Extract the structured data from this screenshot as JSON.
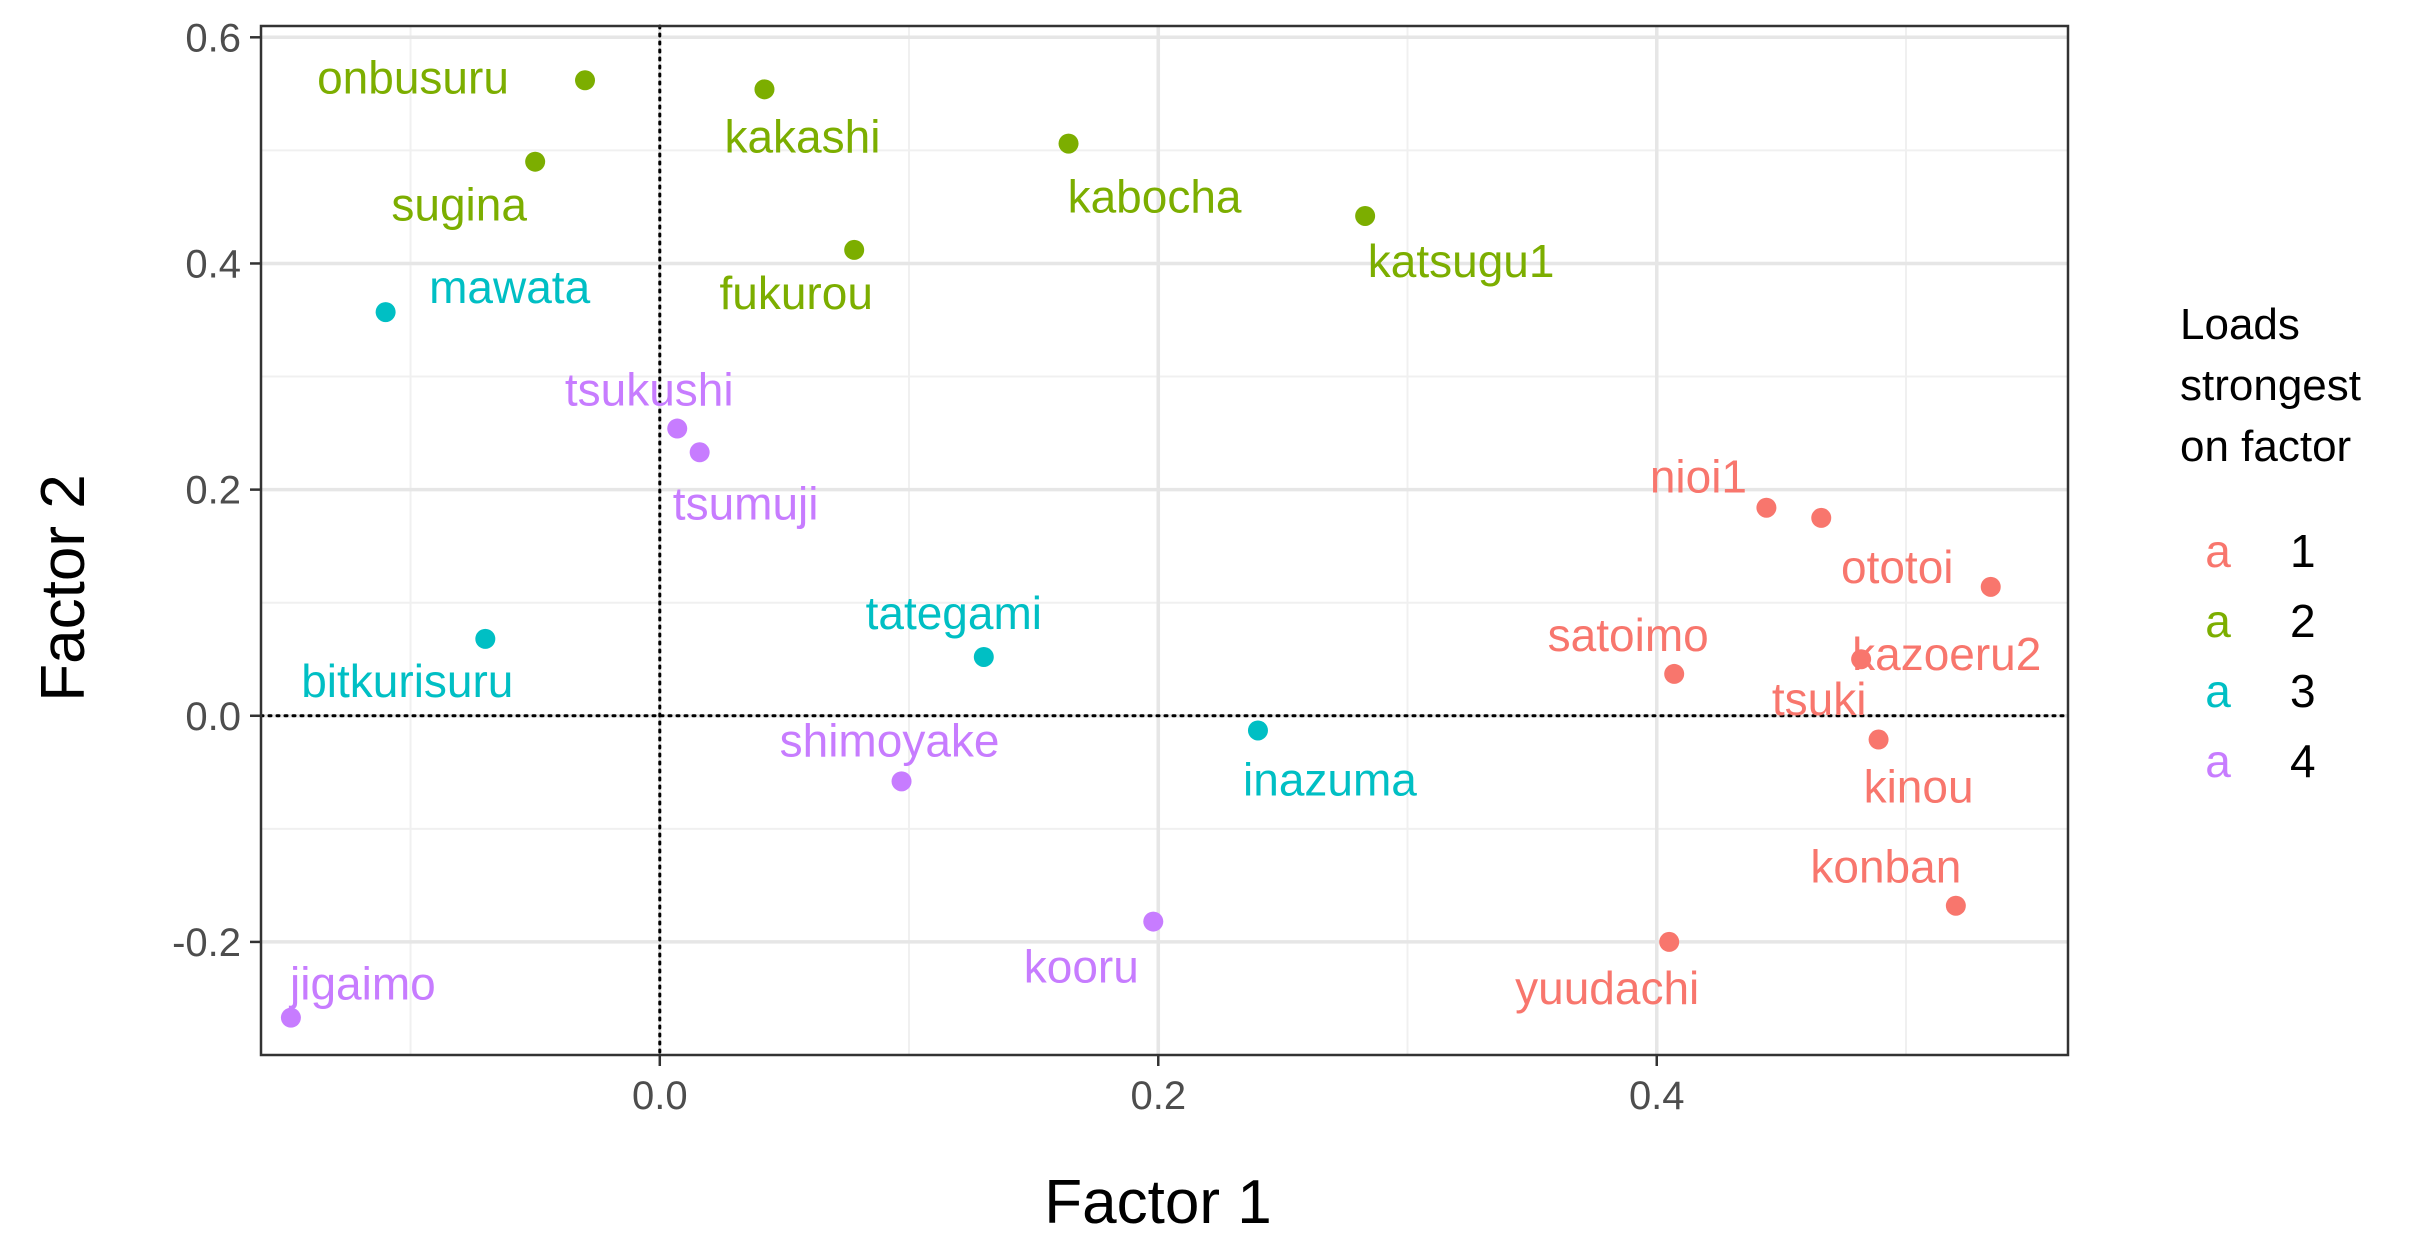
{
  "chart_data": {
    "type": "scatter",
    "xlabel": "Factor 1",
    "ylabel": "Factor 2",
    "xlim": [
      -0.16,
      0.565
    ],
    "ylim": [
      -0.3,
      0.61
    ],
    "x_ticks": [
      {
        "value": 0.0,
        "label": "0.0"
      },
      {
        "value": 0.2,
        "label": "0.2"
      },
      {
        "value": 0.4,
        "label": "0.4"
      }
    ],
    "y_ticks": [
      {
        "value": 0.6,
        "label": "0.6"
      },
      {
        "value": 0.4,
        "label": "0.4"
      },
      {
        "value": 0.2,
        "label": "0.2"
      },
      {
        "value": 0.0,
        "label": "0.0"
      },
      {
        "value": -0.2,
        "label": "-0.2"
      }
    ],
    "grid": true,
    "reference_lines": {
      "x": 0,
      "y": 0,
      "style": "dotted"
    },
    "legend": {
      "title_lines": [
        "Loads",
        "strongest",
        "on factor"
      ],
      "placement": "right",
      "key_glyph": "a",
      "items": [
        {
          "label": "1",
          "color": "#F8766D"
        },
        {
          "label": "2",
          "color": "#7CAE00"
        },
        {
          "label": "3",
          "color": "#00BFC4"
        },
        {
          "label": "4",
          "color": "#C77CFF"
        }
      ]
    },
    "points": [
      {
        "name": "onbusuru",
        "x": -0.03,
        "y": 0.562,
        "group": "2"
      },
      {
        "name": "kakashi",
        "x": 0.042,
        "y": 0.554,
        "group": "2"
      },
      {
        "name": "kabocha",
        "x": 0.164,
        "y": 0.506,
        "group": "2"
      },
      {
        "name": "sugina",
        "x": -0.05,
        "y": 0.49,
        "group": "2"
      },
      {
        "name": "katsugu1",
        "x": 0.283,
        "y": 0.442,
        "group": "2"
      },
      {
        "name": "fukurou",
        "x": 0.078,
        "y": 0.412,
        "group": "2"
      },
      {
        "name": "mawata",
        "x": -0.11,
        "y": 0.357,
        "group": "3"
      },
      {
        "name": "tsukushi",
        "x": 0.007,
        "y": 0.254,
        "group": "4"
      },
      {
        "name": "tsumuji",
        "x": 0.016,
        "y": 0.233,
        "group": "4"
      },
      {
        "name": "nioi1",
        "x": 0.444,
        "y": 0.184,
        "group": "1"
      },
      {
        "name": "ototoi",
        "x": 0.466,
        "y": 0.175,
        "group": "1"
      },
      {
        "name": "kazoeru2",
        "x": 0.534,
        "y": 0.114,
        "group": "1"
      },
      {
        "name": "bitkurisuru",
        "x": -0.07,
        "y": 0.068,
        "group": "3"
      },
      {
        "name": "tategami",
        "x": 0.13,
        "y": 0.052,
        "group": "3"
      },
      {
        "name": "tsuki",
        "x": 0.482,
        "y": 0.05,
        "group": "1"
      },
      {
        "name": "satoimo",
        "x": 0.407,
        "y": 0.037,
        "group": "1"
      },
      {
        "name": "inazuma",
        "x": 0.24,
        "y": -0.013,
        "group": "3"
      },
      {
        "name": "kinou",
        "x": 0.489,
        "y": -0.021,
        "group": "1"
      },
      {
        "name": "shimoyake",
        "x": 0.097,
        "y": -0.058,
        "group": "4"
      },
      {
        "name": "konban",
        "x": 0.52,
        "y": -0.168,
        "group": "1"
      },
      {
        "name": "kooru",
        "x": 0.198,
        "y": -0.182,
        "group": "4"
      },
      {
        "name": "yuudachi",
        "x": 0.405,
        "y": -0.2,
        "group": "1"
      },
      {
        "name": "jigaimo",
        "x": -0.148,
        "y": -0.267,
        "group": "4"
      }
    ]
  }
}
